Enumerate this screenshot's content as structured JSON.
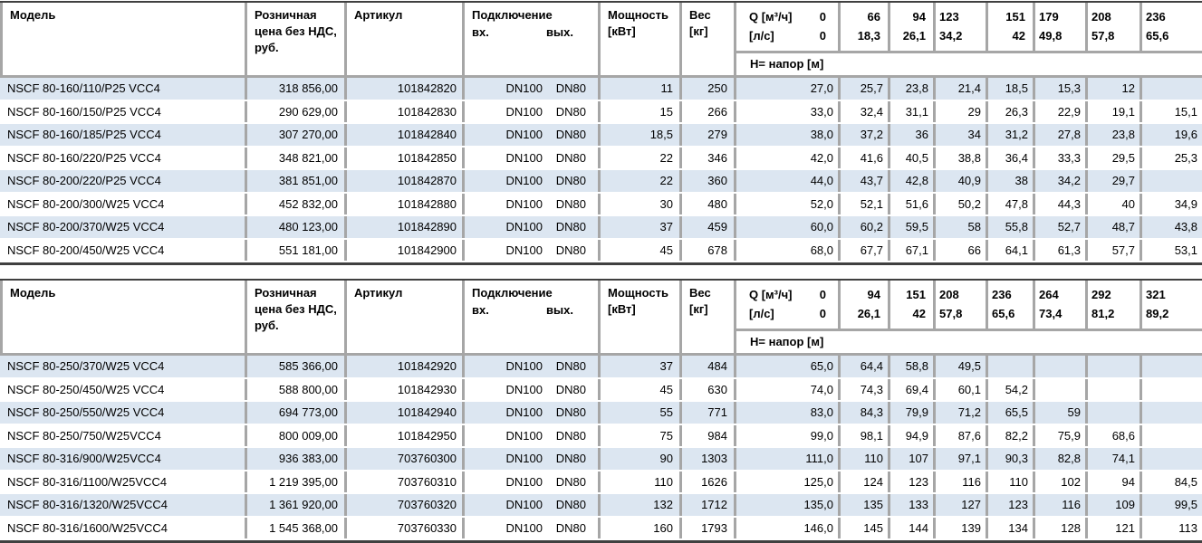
{
  "colors": {
    "row_alt_blue": "#dce6f1",
    "grid_gray": "#a6a6a6",
    "table_edge_dark": "#404040"
  },
  "header": {
    "model": "Модель",
    "price": "Розничная цена без НДС, руб.",
    "article": "Артикул",
    "connection": "Подключение",
    "inlet": "вх.",
    "outlet": "вых.",
    "power": "Мощность [кВт]",
    "weight": "Вес [кг]",
    "q_label": "Q [м³/ч]",
    "q_zero": "0",
    "lps_label": "[л/с]",
    "lps_zero": "0",
    "head_label": "Н= напор [м]"
  },
  "tables": [
    {
      "q_values": [
        "66",
        "94",
        "123",
        "151",
        "179",
        "208",
        "236"
      ],
      "lps_values": [
        "18,3",
        "26,1",
        "34,2",
        "42",
        "49,8",
        "57,8",
        "65,6"
      ],
      "q_align": [
        "right",
        "right",
        "left",
        "right",
        "left",
        "left",
        "left"
      ],
      "rows": [
        {
          "model": "NSCF 80-160/110/P25 VCC4",
          "price": "318 856,00",
          "article": "101842820",
          "inlet": "DN100",
          "outlet": "DN80",
          "power": "11",
          "weight": "250",
          "heads": [
            "27,0",
            "25,7",
            "23,8",
            "21,4",
            "18,5",
            "15,3",
            "12",
            ""
          ]
        },
        {
          "model": "NSCF 80-160/150/P25 VCC4",
          "price": "290 629,00",
          "article": "101842830",
          "inlet": "DN100",
          "outlet": "DN80",
          "power": "15",
          "weight": "266",
          "heads": [
            "33,0",
            "32,4",
            "31,1",
            "29",
            "26,3",
            "22,9",
            "19,1",
            "15,1"
          ]
        },
        {
          "model": "NSCF 80-160/185/P25 VCC4",
          "price": "307 270,00",
          "article": "101842840",
          "inlet": "DN100",
          "outlet": "DN80",
          "power": "18,5",
          "weight": "279",
          "heads": [
            "38,0",
            "37,2",
            "36",
            "34",
            "31,2",
            "27,8",
            "23,8",
            "19,6"
          ]
        },
        {
          "model": "NSCF 80-160/220/P25 VCC4",
          "price": "348 821,00",
          "article": "101842850",
          "inlet": "DN100",
          "outlet": "DN80",
          "power": "22",
          "weight": "346",
          "heads": [
            "42,0",
            "41,6",
            "40,5",
            "38,8",
            "36,4",
            "33,3",
            "29,5",
            "25,3"
          ]
        },
        {
          "model": "NSCF 80-200/220/P25 VCC4",
          "price": "381 851,00",
          "article": "101842870",
          "inlet": "DN100",
          "outlet": "DN80",
          "power": "22",
          "weight": "360",
          "heads": [
            "44,0",
            "43,7",
            "42,8",
            "40,9",
            "38",
            "34,2",
            "29,7",
            ""
          ]
        },
        {
          "model": "NSCF 80-200/300/W25 VCC4",
          "price": "452 832,00",
          "article": "101842880",
          "inlet": "DN100",
          "outlet": "DN80",
          "power": "30",
          "weight": "480",
          "heads": [
            "52,0",
            "52,1",
            "51,6",
            "50,2",
            "47,8",
            "44,3",
            "40",
            "34,9"
          ]
        },
        {
          "model": "NSCF 80-200/370/W25 VCC4",
          "price": "480 123,00",
          "article": "101842890",
          "inlet": "DN100",
          "outlet": "DN80",
          "power": "37",
          "weight": "459",
          "heads": [
            "60,0",
            "60,2",
            "59,5",
            "58",
            "55,8",
            "52,7",
            "48,7",
            "43,8"
          ]
        },
        {
          "model": "NSCF 80-200/450/W25 VCC4",
          "price": "551 181,00",
          "article": "101842900",
          "inlet": "DN100",
          "outlet": "DN80",
          "power": "45",
          "weight": "678",
          "heads": [
            "68,0",
            "67,7",
            "67,1",
            "66",
            "64,1",
            "61,3",
            "57,7",
            "53,1"
          ]
        }
      ]
    },
    {
      "q_values": [
        "94",
        "151",
        "208",
        "236",
        "264",
        "292",
        "321"
      ],
      "lps_values": [
        "26,1",
        "42",
        "57,8",
        "65,6",
        "73,4",
        "81,2",
        "89,2"
      ],
      "q_align": [
        "right",
        "right",
        "left",
        "left",
        "left",
        "left",
        "left"
      ],
      "rows": [
        {
          "model": "NSCF 80-250/370/W25 VCC4",
          "price": "585 366,00",
          "article": "101842920",
          "inlet": "DN100",
          "outlet": "DN80",
          "power": "37",
          "weight": "484",
          "heads": [
            "65,0",
            "64,4",
            "58,8",
            "49,5",
            "",
            "",
            "",
            ""
          ]
        },
        {
          "model": "NSCF 80-250/450/W25 VCC4",
          "price": "588 800,00",
          "article": "101842930",
          "inlet": "DN100",
          "outlet": "DN80",
          "power": "45",
          "weight": "630",
          "heads": [
            "74,0",
            "74,3",
            "69,4",
            "60,1",
            "54,2",
            "",
            "",
            ""
          ]
        },
        {
          "model": "NSCF 80-250/550/W25 VCC4",
          "price": "694 773,00",
          "article": "101842940",
          "inlet": "DN100",
          "outlet": "DN80",
          "power": "55",
          "weight": "771",
          "heads": [
            "83,0",
            "84,3",
            "79,9",
            "71,2",
            "65,5",
            "59",
            "",
            ""
          ]
        },
        {
          "model": "NSCF 80-250/750/W25VCC4",
          "price": "800 009,00",
          "article": "101842950",
          "inlet": "DN100",
          "outlet": "DN80",
          "power": "75",
          "weight": "984",
          "heads": [
            "99,0",
            "98,1",
            "94,9",
            "87,6",
            "82,2",
            "75,9",
            "68,6",
            ""
          ]
        },
        {
          "model": "NSCF 80-316/900/W25VCC4",
          "price": "936 383,00",
          "article": "703760300",
          "inlet": "DN100",
          "outlet": "DN80",
          "power": "90",
          "weight": "1303",
          "heads": [
            "111,0",
            "110",
            "107",
            "97,1",
            "90,3",
            "82,8",
            "74,1",
            ""
          ]
        },
        {
          "model": "NSCF 80-316/1100/W25VCC4",
          "price": "1 219 395,00",
          "article": "703760310",
          "inlet": "DN100",
          "outlet": "DN80",
          "power": "110",
          "weight": "1626",
          "heads": [
            "125,0",
            "124",
            "123",
            "116",
            "110",
            "102",
            "94",
            "84,5"
          ]
        },
        {
          "model": "NSCF 80-316/1320/W25VCC4",
          "price": "1 361 920,00",
          "article": "703760320",
          "inlet": "DN100",
          "outlet": "DN80",
          "power": "132",
          "weight": "1712",
          "heads": [
            "135,0",
            "135",
            "133",
            "127",
            "123",
            "116",
            "109",
            "99,5"
          ]
        },
        {
          "model": "NSCF 80-316/1600/W25VCC4",
          "price": "1 545 368,00",
          "article": "703760330",
          "inlet": "DN100",
          "outlet": "DN80",
          "power": "160",
          "weight": "1793",
          "heads": [
            "146,0",
            "145",
            "144",
            "139",
            "134",
            "128",
            "121",
            "113"
          ]
        }
      ]
    }
  ]
}
